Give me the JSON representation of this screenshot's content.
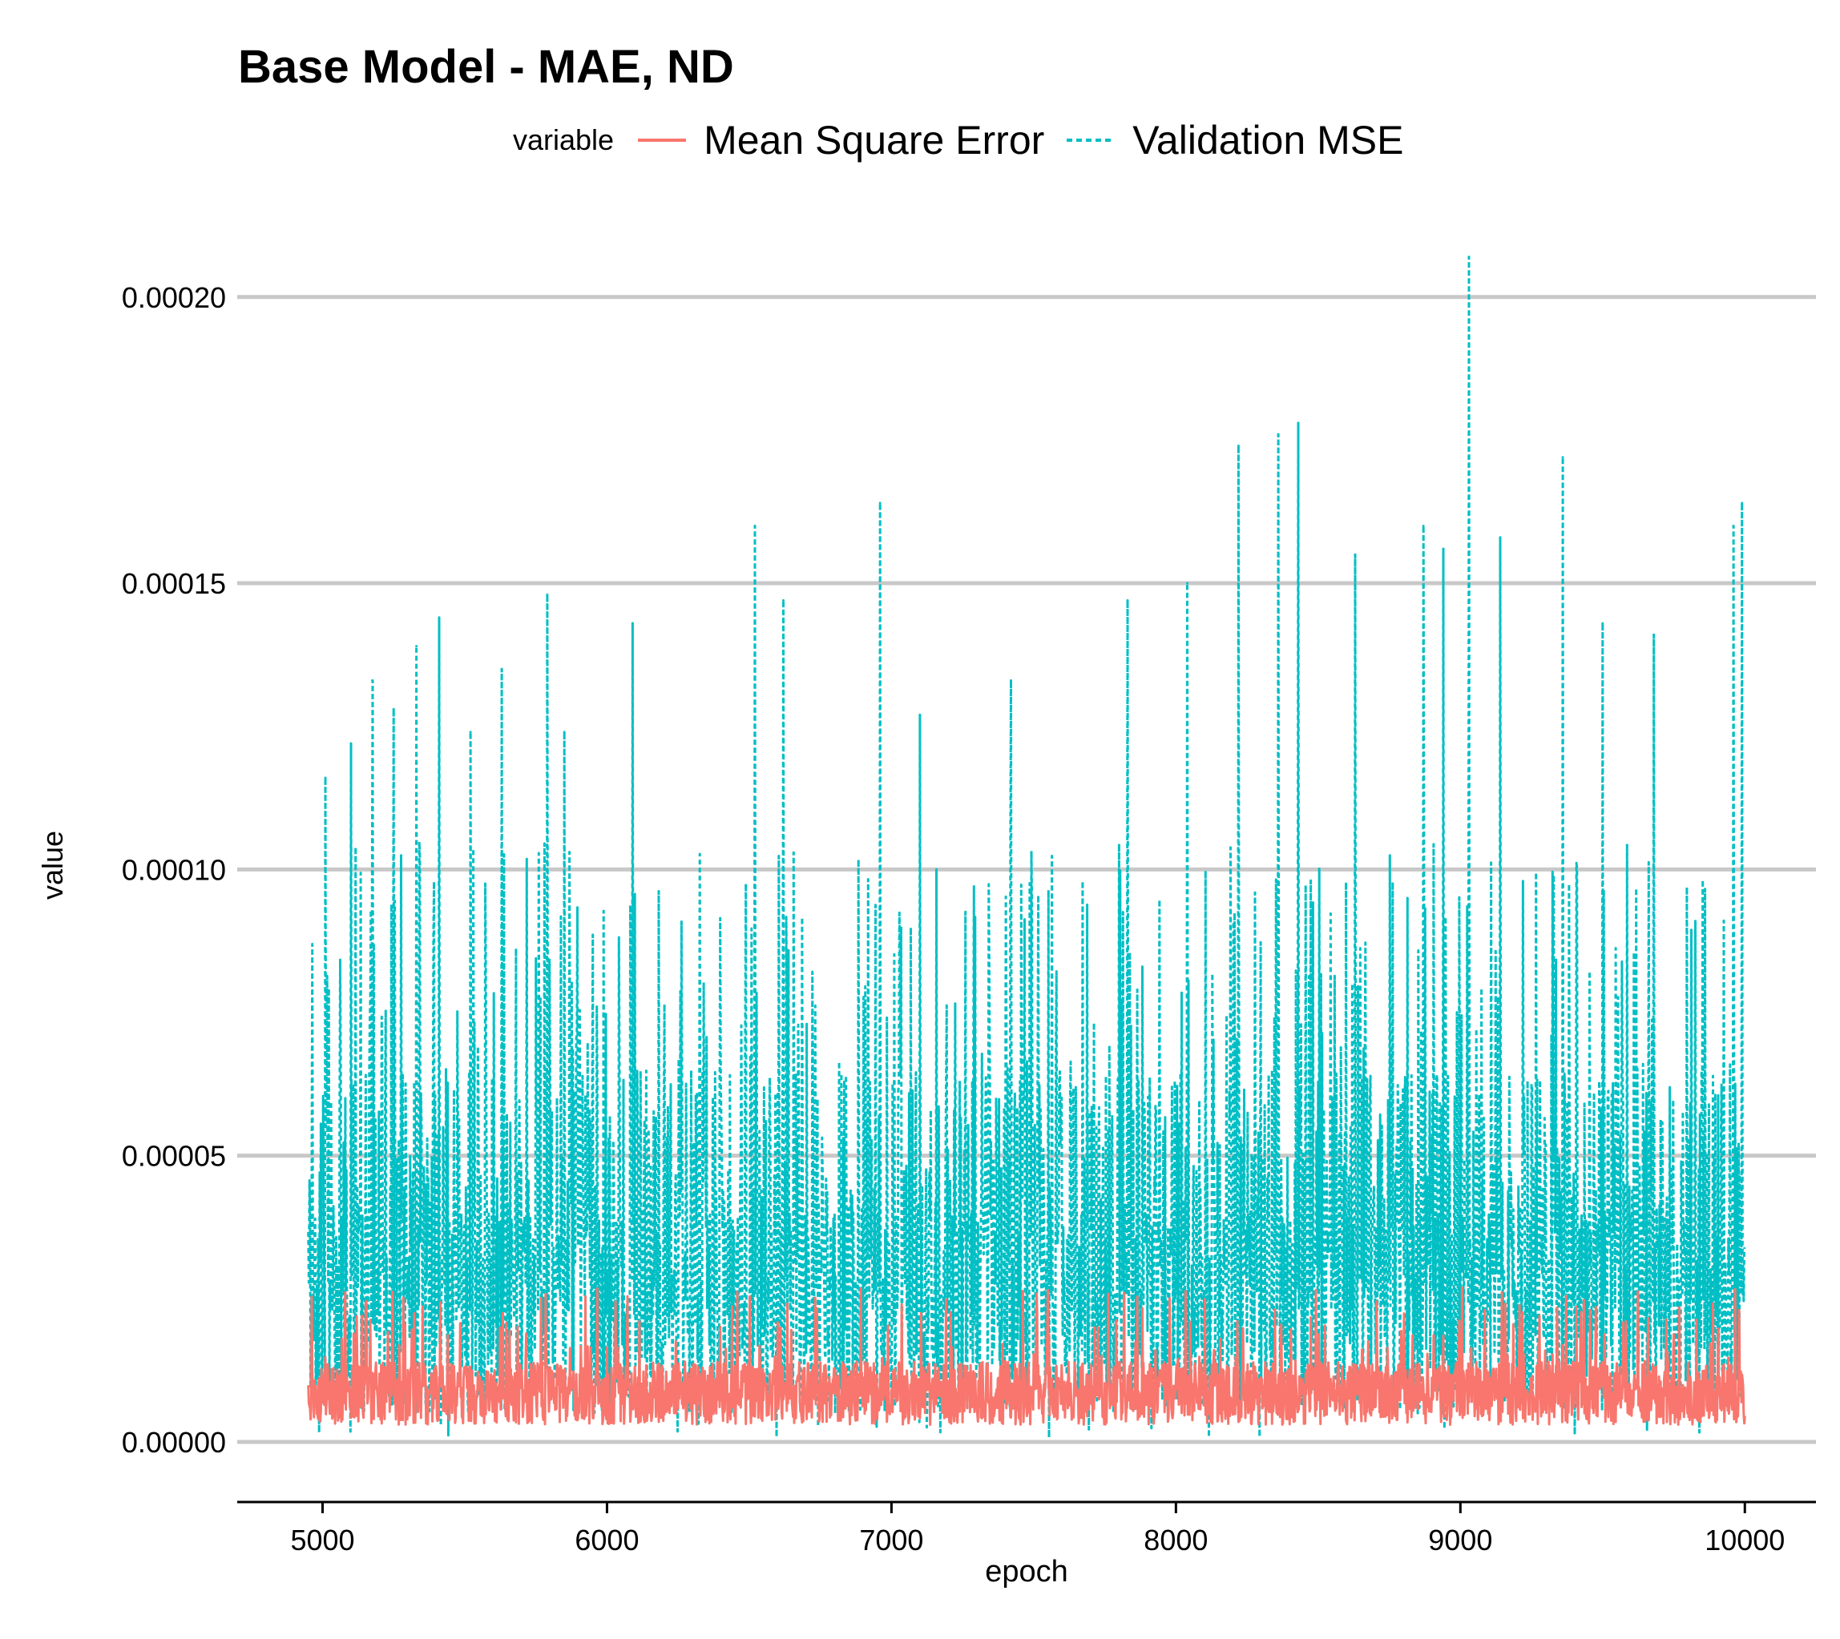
{
  "chart_data": {
    "type": "line",
    "title": "Base Model - MAE, ND",
    "xlabel": "epoch",
    "ylabel": "value",
    "legend": {
      "title": "variable",
      "placement": "top"
    },
    "xlim": [
      4700,
      10250
    ],
    "ylim": [
      -1.05e-05,
      0.000212
    ],
    "xticks": [
      5000,
      6000,
      7000,
      8000,
      9000,
      10000
    ],
    "xtick_labels": [
      "5000",
      "6000",
      "7000",
      "8000",
      "9000",
      "10000"
    ],
    "yticks": [
      0,
      5e-05,
      0.0001,
      0.00015,
      0.0002
    ],
    "ytick_labels": [
      "0.00000",
      "0.00005",
      "0.00010",
      "0.00015",
      "0.00020"
    ],
    "grid": "horizontal major lines",
    "x_range": [
      4950,
      10000
    ],
    "series": [
      {
        "name": "Mean Square Error",
        "color": "#F8766D",
        "linestyle": "solid",
        "typical_range": [
          4e-06,
          1.8e-05
        ],
        "max": 2.7e-05
      },
      {
        "name": "Validation MSE",
        "color": "#00BFC4",
        "linestyle": "dashed",
        "typical_range": [
          5e-06,
          0.0001
        ],
        "max": 0.000207,
        "peaks": [
          {
            "x": 5010,
            "y": 0.000116
          },
          {
            "x": 5100,
            "y": 0.000122
          },
          {
            "x": 5175,
            "y": 0.000133
          },
          {
            "x": 5250,
            "y": 0.000128
          },
          {
            "x": 5330,
            "y": 0.000139
          },
          {
            "x": 5410,
            "y": 0.000144
          },
          {
            "x": 5520,
            "y": 0.000124
          },
          {
            "x": 5630,
            "y": 0.000135
          },
          {
            "x": 5790,
            "y": 0.000148
          },
          {
            "x": 5850,
            "y": 0.000124
          },
          {
            "x": 6090,
            "y": 0.000143
          },
          {
            "x": 6520,
            "y": 0.00016
          },
          {
            "x": 6620,
            "y": 0.000147
          },
          {
            "x": 6960,
            "y": 0.000164
          },
          {
            "x": 7100,
            "y": 0.000127
          },
          {
            "x": 7420,
            "y": 0.000133
          },
          {
            "x": 7830,
            "y": 0.000147
          },
          {
            "x": 8040,
            "y": 0.00015
          },
          {
            "x": 8220,
            "y": 0.000174
          },
          {
            "x": 8360,
            "y": 0.000176
          },
          {
            "x": 8430,
            "y": 0.000178
          },
          {
            "x": 8630,
            "y": 0.000155
          },
          {
            "x": 8870,
            "y": 0.00016
          },
          {
            "x": 8940,
            "y": 0.000156
          },
          {
            "x": 9030,
            "y": 0.000207
          },
          {
            "x": 9140,
            "y": 0.000158
          },
          {
            "x": 9360,
            "y": 0.000172
          },
          {
            "x": 9500,
            "y": 0.000143
          },
          {
            "x": 9680,
            "y": 0.000141
          },
          {
            "x": 9960,
            "y": 0.00016
          },
          {
            "x": 9990,
            "y": 0.000164
          }
        ]
      }
    ]
  }
}
